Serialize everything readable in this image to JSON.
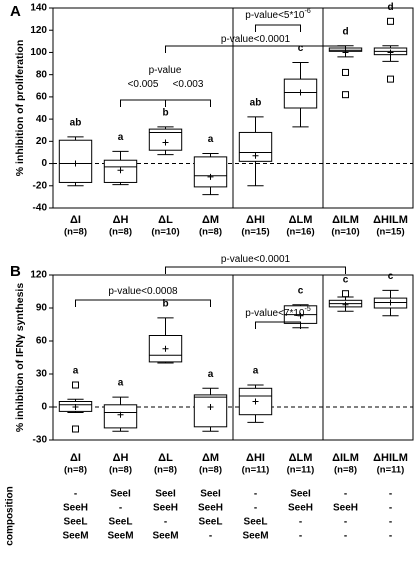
{
  "chart_data": [
    {
      "type": "box",
      "panel": "A",
      "ylabel": "% inhibition of proliferation",
      "categories": [
        "ΔI",
        "ΔH",
        "ΔL",
        "ΔM",
        "ΔHI",
        "ΔLM",
        "ΔILM",
        "ΔHILM"
      ],
      "n_labels": [
        "(n=8)",
        "(n=8)",
        "(n=10)",
        "(n=8)",
        "(n=15)",
        "(n=16)",
        "(n=10)",
        "(n=15)"
      ],
      "letters": [
        "ab",
        "a",
        "b",
        "a",
        "ab",
        "c",
        "d",
        "d"
      ],
      "boxes": [
        {
          "min": -20,
          "q1": -17,
          "median": 0,
          "q3": 21,
          "max": 24,
          "mean": 0,
          "outliers": []
        },
        {
          "min": -19,
          "q1": -17,
          "median": -3,
          "q3": 3,
          "max": 11,
          "mean": -6,
          "outliers": []
        },
        {
          "min": 8,
          "q1": 12,
          "median": 28,
          "q3": 31,
          "max": 33,
          "mean": 19,
          "outliers": []
        },
        {
          "min": -28,
          "q1": -21,
          "median": -11,
          "q3": 6,
          "max": 9,
          "mean": -12,
          "outliers": []
        },
        {
          "min": -20,
          "q1": 2,
          "median": 10,
          "q3": 28,
          "max": 42,
          "mean": 7,
          "outliers": []
        },
        {
          "min": 33,
          "q1": 50,
          "median": 64,
          "q3": 76,
          "max": 91,
          "mean": 64,
          "outliers": []
        },
        {
          "min": 96,
          "q1": 101,
          "median": 102,
          "q3": 104,
          "max": 106,
          "mean": 100,
          "outliers": [
            82,
            62
          ]
        },
        {
          "min": 92,
          "q1": 98,
          "median": 101,
          "q3": 104,
          "max": 106,
          "mean": 100,
          "outliers": [
            128,
            76
          ]
        }
      ],
      "ylim": [
        -40,
        140
      ],
      "yticks": [
        -40,
        -20,
        0,
        20,
        40,
        60,
        80,
        100,
        120,
        140
      ],
      "annotations": [
        {
          "text": "p-value<0.0001",
          "from": "ΔL",
          "to": "ΔILM"
        },
        {
          "text": "p-value<5*10",
          "sup": "-6",
          "from": "ΔHI",
          "to": "ΔLM"
        },
        {
          "text": "<0.005",
          "from": "ΔH",
          "to": "ΔL"
        },
        {
          "text": "<0.003",
          "from": "ΔL",
          "to": "ΔM"
        },
        {
          "text": "p-value"
        }
      ]
    },
    {
      "type": "box",
      "panel": "B",
      "ylabel": "% inhibition of IFNγ synthesis",
      "categories": [
        "ΔI",
        "ΔH",
        "ΔL",
        "ΔM",
        "ΔHI",
        "ΔLM",
        "ΔILM",
        "ΔHILM"
      ],
      "n_labels": [
        "(n=8)",
        "(n=8)",
        "(n=8)",
        "(n=8)",
        "(n=11)",
        "(n=11)",
        "(n=8)",
        "(n=11)"
      ],
      "letters": [
        "a",
        "a",
        "b",
        "a",
        "a",
        "c",
        "c",
        "c"
      ],
      "boxes": [
        {
          "min": -5,
          "q1": -4,
          "median": 2,
          "q3": 5,
          "max": 7,
          "mean": 0,
          "outliers": [
            20,
            -20
          ]
        },
        {
          "min": -22,
          "q1": -19,
          "median": -5,
          "q3": 2,
          "max": 9,
          "mean": -7,
          "outliers": []
        },
        {
          "min": 40,
          "q1": 41,
          "median": 47,
          "q3": 65,
          "max": 81,
          "mean": 53,
          "outliers": []
        },
        {
          "min": -22,
          "q1": -18,
          "median": 9,
          "q3": 11,
          "max": 17,
          "mean": 0,
          "outliers": []
        },
        {
          "min": -14,
          "q1": -7,
          "median": 10,
          "q3": 17,
          "max": 20,
          "mean": 5,
          "outliers": []
        },
        {
          "min": 72,
          "q1": 76,
          "median": 84,
          "q3": 92,
          "max": 93,
          "mean": 83,
          "outliers": []
        },
        {
          "min": 87,
          "q1": 91,
          "median": 94,
          "q3": 97,
          "max": 100,
          "mean": 93,
          "outliers": [
            103
          ]
        },
        {
          "min": 83,
          "q1": 90,
          "median": 95,
          "q3": 99,
          "max": 106,
          "mean": 95,
          "outliers": []
        }
      ],
      "ylim": [
        -30,
        120
      ],
      "yticks": [
        -30,
        0,
        30,
        60,
        90,
        120
      ],
      "annotations": [
        {
          "text": "p-value<0.0001",
          "from": "ΔL",
          "to": "ΔILM"
        },
        {
          "text": "p-value<0.0008",
          "from": "ΔI",
          "to": "ΔM"
        },
        {
          "text": "p-value<7*10",
          "sup": "-5",
          "from": "ΔHI",
          "to": "ΔLM"
        }
      ]
    }
  ],
  "composition": {
    "label": "composition",
    "columns": [
      [
        "-",
        "SeeH",
        "SeeL",
        "SeeM"
      ],
      [
        "SeeI",
        "-",
        "SeeL",
        "SeeM"
      ],
      [
        "SeeI",
        "SeeH",
        "-",
        "SeeM"
      ],
      [
        "SeeI",
        "SeeH",
        "SeeL",
        "-"
      ],
      [
        "-",
        "-",
        "SeeL",
        "SeeM"
      ],
      [
        "SeeI",
        "SeeH",
        "-",
        "-"
      ],
      [
        "-",
        "SeeH",
        "-",
        "-"
      ],
      [
        "-",
        "-",
        "-",
        "-"
      ]
    ]
  }
}
